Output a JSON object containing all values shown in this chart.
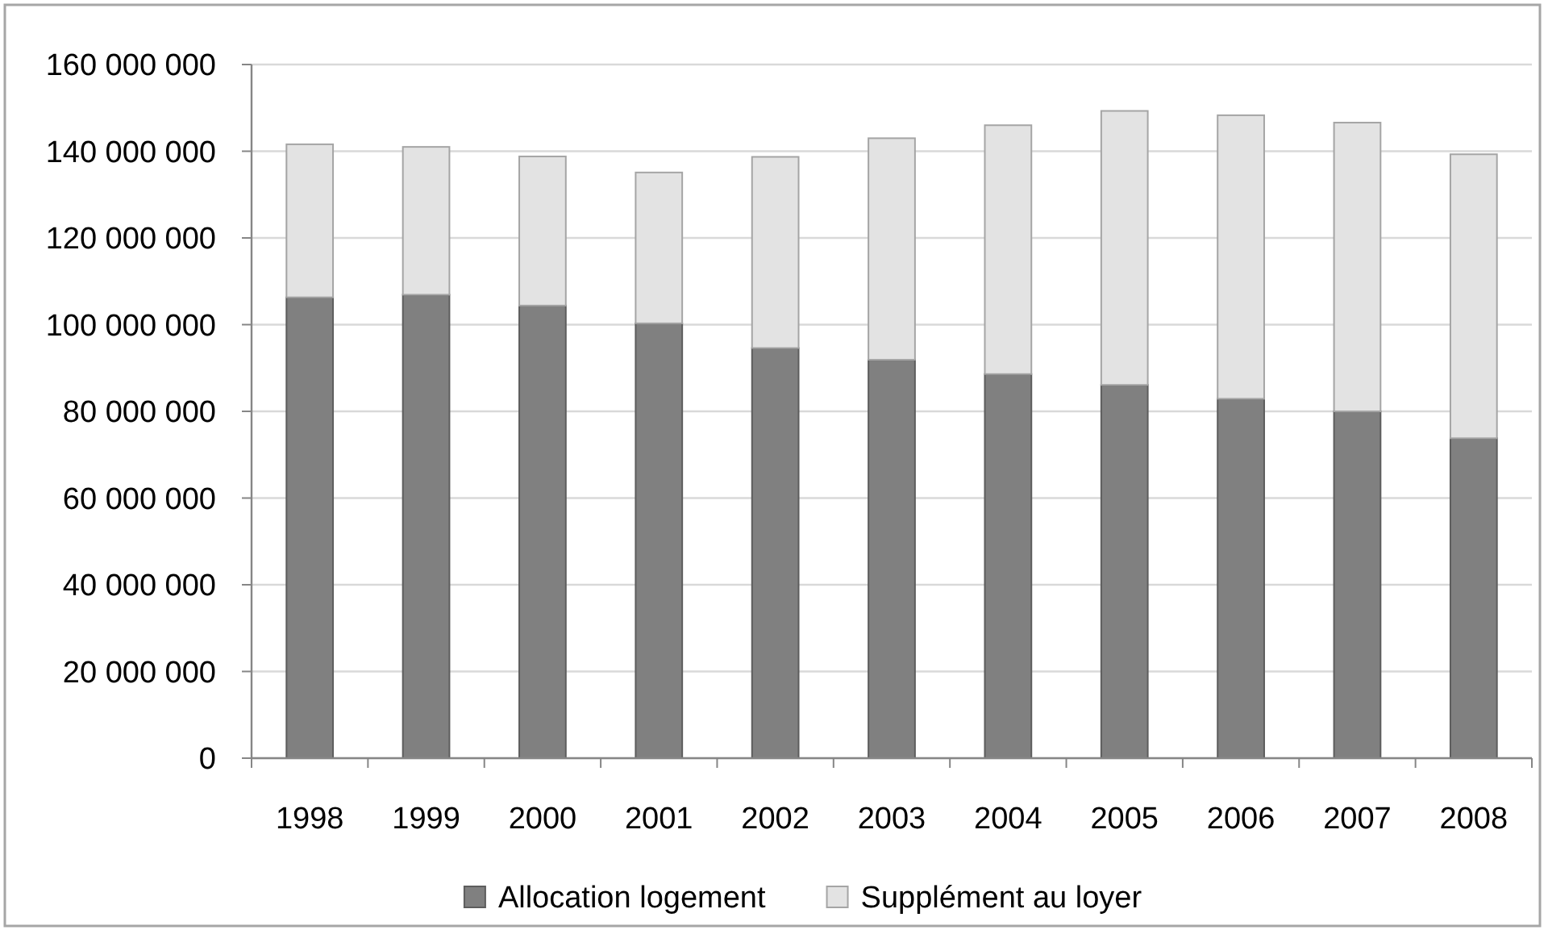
{
  "chart_data": {
    "type": "bar",
    "stacked": true,
    "categories": [
      "1998",
      "1999",
      "2000",
      "2001",
      "2002",
      "2003",
      "2004",
      "2005",
      "2006",
      "2007",
      "2008"
    ],
    "series": [
      {
        "name": "Allocation logement",
        "color": "#808080",
        "values": [
          106300000,
          106900000,
          104400000,
          100300000,
          94600000,
          91900000,
          88600000,
          86100000,
          82900000,
          80000000,
          73800000
        ]
      },
      {
        "name": "Supplément au loyer",
        "color": "#e3e3e3",
        "values": [
          35300000,
          34100000,
          34400000,
          34800000,
          44100000,
          51100000,
          57400000,
          63200000,
          65400000,
          66600000,
          65500000
        ]
      }
    ],
    "ylim": [
      0,
      160000000
    ],
    "yticks": [
      0,
      {
        "value": 20000000,
        "label": "20 000 000"
      },
      {
        "value": 40000000,
        "label": "40 000 000"
      },
      {
        "value": 60000000,
        "label": "60 000 000"
      },
      {
        "value": 80000000,
        "label": "80 000 000"
      },
      {
        "value": 100000000,
        "label": "100 000 000"
      },
      {
        "value": 120000000,
        "label": "120 000 000"
      },
      {
        "value": 140000000,
        "label": "140 000 000"
      },
      {
        "value": 160000000,
        "label": "160 000 000"
      }
    ],
    "grid": "y",
    "legend": "bottom"
  }
}
